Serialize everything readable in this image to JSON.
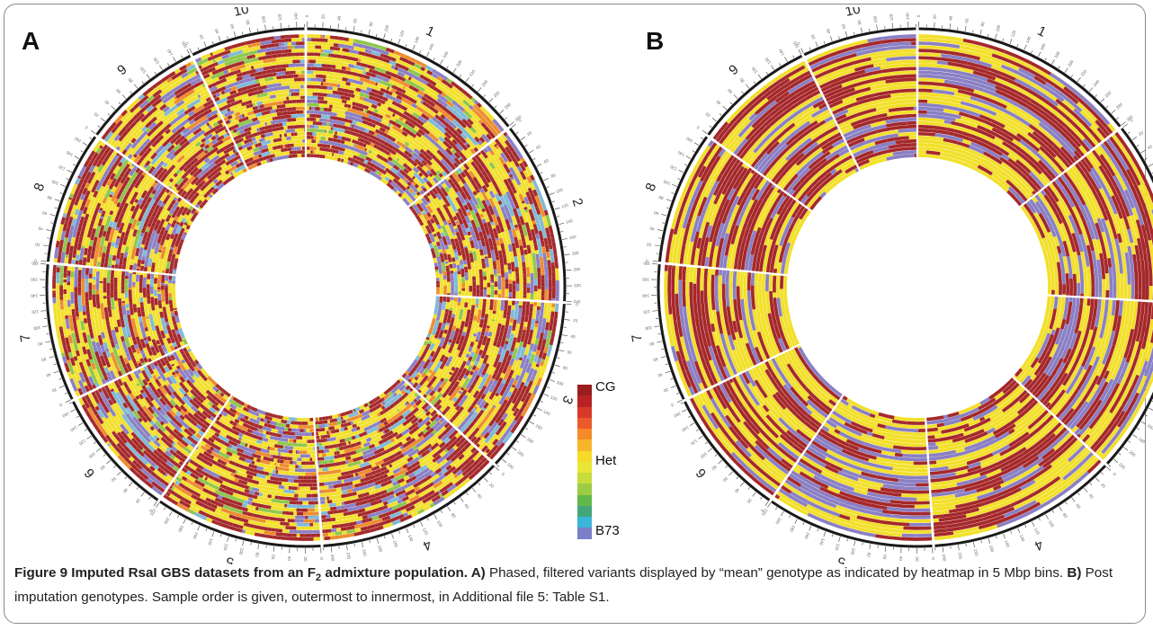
{
  "panels": [
    {
      "id": "A",
      "letter": "A",
      "style": "raw"
    },
    {
      "id": "B",
      "letter": "B",
      "style": "imputed"
    }
  ],
  "chromosomes": [
    {
      "label": "1",
      "length": 300
    },
    {
      "label": "2",
      "length": 240
    },
    {
      "label": "3",
      "length": 230
    },
    {
      "label": "4",
      "length": 250
    },
    {
      "label": "5",
      "length": 220
    },
    {
      "label": "6",
      "length": 170
    },
    {
      "label": "7",
      "length": 180
    },
    {
      "label": "8",
      "length": 175
    },
    {
      "label": "9",
      "length": 160
    },
    {
      "label": "10",
      "length": 150
    }
  ],
  "legend": {
    "top_label": "CG",
    "mid_label": "Het",
    "bottom_label": "B73",
    "colors": [
      "#9b1d1d",
      "#b82222",
      "#d8392b",
      "#ec5a2c",
      "#f48a2a",
      "#f7b52b",
      "#f5da2a",
      "#e8e637",
      "#c8dc3c",
      "#9ccc45",
      "#62b84a",
      "#43a67a",
      "#3ab6d9",
      "#7a80c8"
    ]
  },
  "colors": {
    "cg": "#a5282a",
    "het": "#f2e02a",
    "b73": "#8a7fc4",
    "b73_light": "#7fb9d6",
    "orange": "#ee8c2c",
    "green": "#8ec74a",
    "ring": "#1a1a1a"
  },
  "caption": {
    "title_part1": "Figure 9 Imputed RsaI GBS datasets from an F",
    "title_sub": "2",
    "title_part2": " admixture population. ",
    "a_label": "A)",
    "a_text": " Phased, filtered variants displayed by “mean” genotype as indicated by heatmap in 5 Mbp bins. ",
    "b_label": "B)",
    "b_text": " Post imputation genotypes. Sample order is given, outermost to innermost, in Additional file 5: Table S1."
  }
}
